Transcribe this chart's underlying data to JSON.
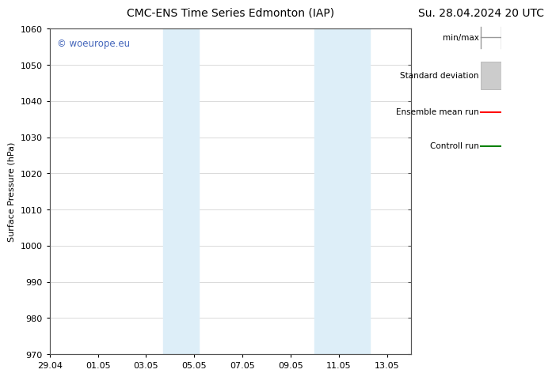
{
  "title_left": "CMC-ENS Time Series Edmonton (IAP)",
  "title_right": "Su. 28.04.2024 20 UTC",
  "ylabel": "Surface Pressure (hPa)",
  "ylim": [
    970,
    1060
  ],
  "yticks": [
    970,
    980,
    990,
    1000,
    1010,
    1020,
    1030,
    1040,
    1050,
    1060
  ],
  "xtick_labels": [
    "29.04",
    "01.05",
    "03.05",
    "05.05",
    "07.05",
    "09.05",
    "11.05",
    "13.05"
  ],
  "xtick_positions": [
    0,
    2,
    4,
    6,
    8,
    10,
    12,
    14
  ],
  "xlim": [
    0,
    15
  ],
  "shaded_bands": [
    {
      "x_start": 4.7,
      "x_end": 6.2
    },
    {
      "x_start": 11.0,
      "x_end": 13.3
    }
  ],
  "shade_color": "#ddeef8",
  "watermark_text": "© woeurope.eu",
  "watermark_color": "#4466bb",
  "legend_entries": [
    {
      "label": "min/max",
      "color": "#aaaaaa",
      "style": "minmax"
    },
    {
      "label": "Standard deviation",
      "color": "#cccccc",
      "style": "stddev"
    },
    {
      "label": "Ensemble mean run",
      "color": "red",
      "style": "line"
    },
    {
      "label": "Controll run",
      "color": "green",
      "style": "line"
    }
  ],
  "bg_color": "#ffffff",
  "grid_color": "#cccccc",
  "title_fontsize": 10,
  "label_fontsize": 8,
  "tick_fontsize": 8,
  "legend_fontsize": 7.5
}
